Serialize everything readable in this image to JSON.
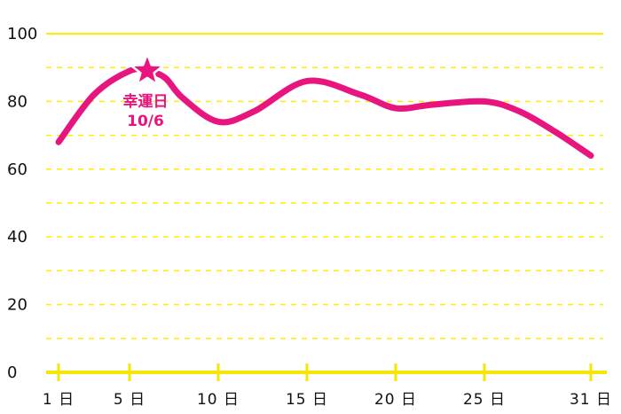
{
  "chart_data": {
    "type": "line",
    "title": "",
    "xlabel": "",
    "ylabel": "",
    "x_ticks": [
      1,
      5,
      10,
      15,
      20,
      25,
      31
    ],
    "x_tick_labels": [
      "1 日",
      "5 日",
      "10 日",
      "15 日",
      "20 日",
      "25 日",
      "31 日"
    ],
    "xlim": [
      1,
      31
    ],
    "ylim": [
      0,
      100
    ],
    "y_ticks": [
      0,
      20,
      40,
      60,
      80,
      100
    ],
    "y_tick_labels": [
      "0",
      "20",
      "40",
      "60",
      "80",
      "100"
    ],
    "grid": true,
    "series": [
      {
        "x": [
          1,
          3,
          5,
          6,
          7,
          8,
          10,
          12,
          15,
          18,
          20,
          22,
          25,
          27,
          29,
          31
        ],
        "values": [
          68,
          82,
          89,
          89,
          87,
          81,
          74,
          77,
          86,
          82,
          78,
          79,
          80,
          77,
          71,
          64
        ]
      }
    ],
    "annotations": [
      {
        "x": 6,
        "y": 88,
        "marker": "star-icon",
        "label_line1": "幸運日",
        "label_line2": "10/6"
      }
    ],
    "colors": {
      "line": "#e8157f",
      "grid": "#ffee00",
      "axis": "#f5e800",
      "tick_text": "#111111",
      "annotation_text": "#e8157f"
    }
  }
}
